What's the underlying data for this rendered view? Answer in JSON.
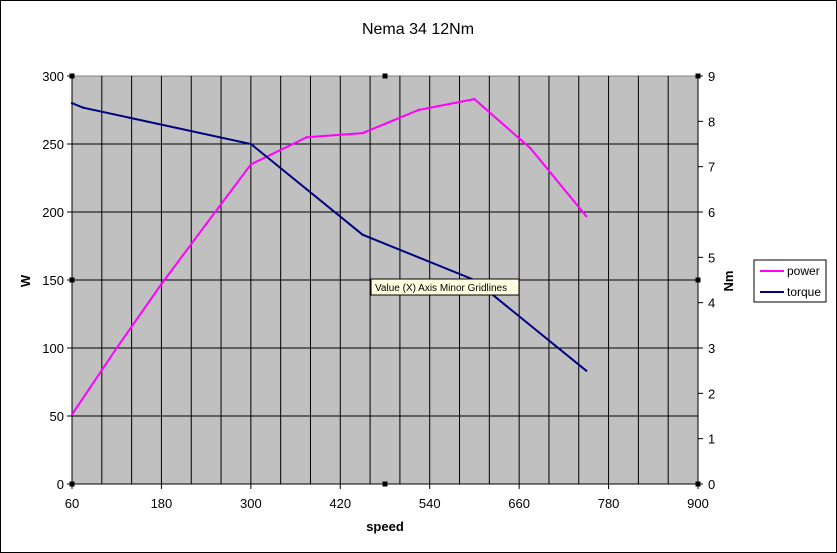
{
  "chart_data": {
    "type": "line",
    "title": "Nema 34 12Nm",
    "xlabel": "speed",
    "ylabel": "W",
    "y2label": "Nm",
    "xlim": [
      60,
      900
    ],
    "ylim": [
      0,
      300
    ],
    "y2lim": [
      0,
      9
    ],
    "xticks": [
      60,
      180,
      300,
      420,
      540,
      660,
      780,
      900
    ],
    "yticks": [
      0,
      50,
      100,
      150,
      200,
      250,
      300
    ],
    "y2ticks": [
      0,
      1,
      2,
      3,
      4,
      5,
      6,
      7,
      8,
      9
    ],
    "grid": true,
    "legend_position": "right",
    "plot_background": "#c0c0c0",
    "series": [
      {
        "name": "power",
        "axis": "left",
        "color": "#ff00ff",
        "x": [
          60,
          120,
          180,
          240,
          300,
          375,
          450,
          525,
          600,
          675,
          750
        ],
        "y": [
          51,
          100,
          147,
          191,
          235,
          255,
          258,
          275,
          283,
          247,
          197
        ]
      },
      {
        "name": "torque",
        "axis": "right",
        "color": "#000080",
        "x": [
          60,
          75,
          300,
          450,
          600,
          750
        ],
        "y": [
          8.4,
          8.3,
          7.5,
          5.5,
          4.5,
          2.5
        ]
      }
    ]
  },
  "tooltip": {
    "text": "Value (X) Axis Minor Gridlines"
  }
}
